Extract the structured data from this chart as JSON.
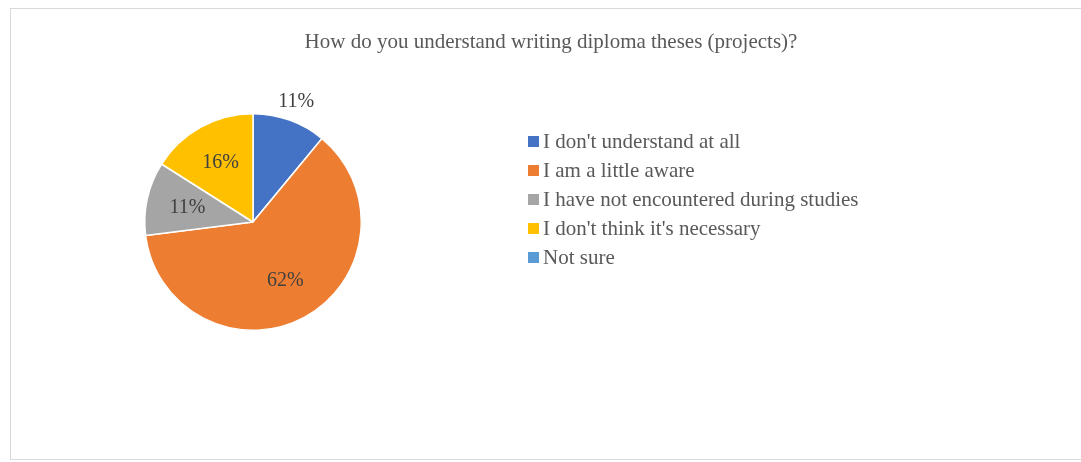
{
  "chart_data": {
    "type": "pie",
    "title": "How do you understand writing diploma theses (projects)?",
    "categories": [
      "I don't understand at all",
      "I am a little aware",
      "I have not encountered during studies",
      "I don't think it's necessary",
      "Not sure"
    ],
    "values": [
      11,
      62,
      11,
      16,
      0
    ],
    "colors": [
      "#4472c4",
      "#ed7d31",
      "#a5a5a5",
      "#ffc000",
      "#5b9bd5"
    ],
    "value_labels": [
      "11%",
      "62%",
      "11%",
      "16%",
      null
    ],
    "legend": "right"
  }
}
